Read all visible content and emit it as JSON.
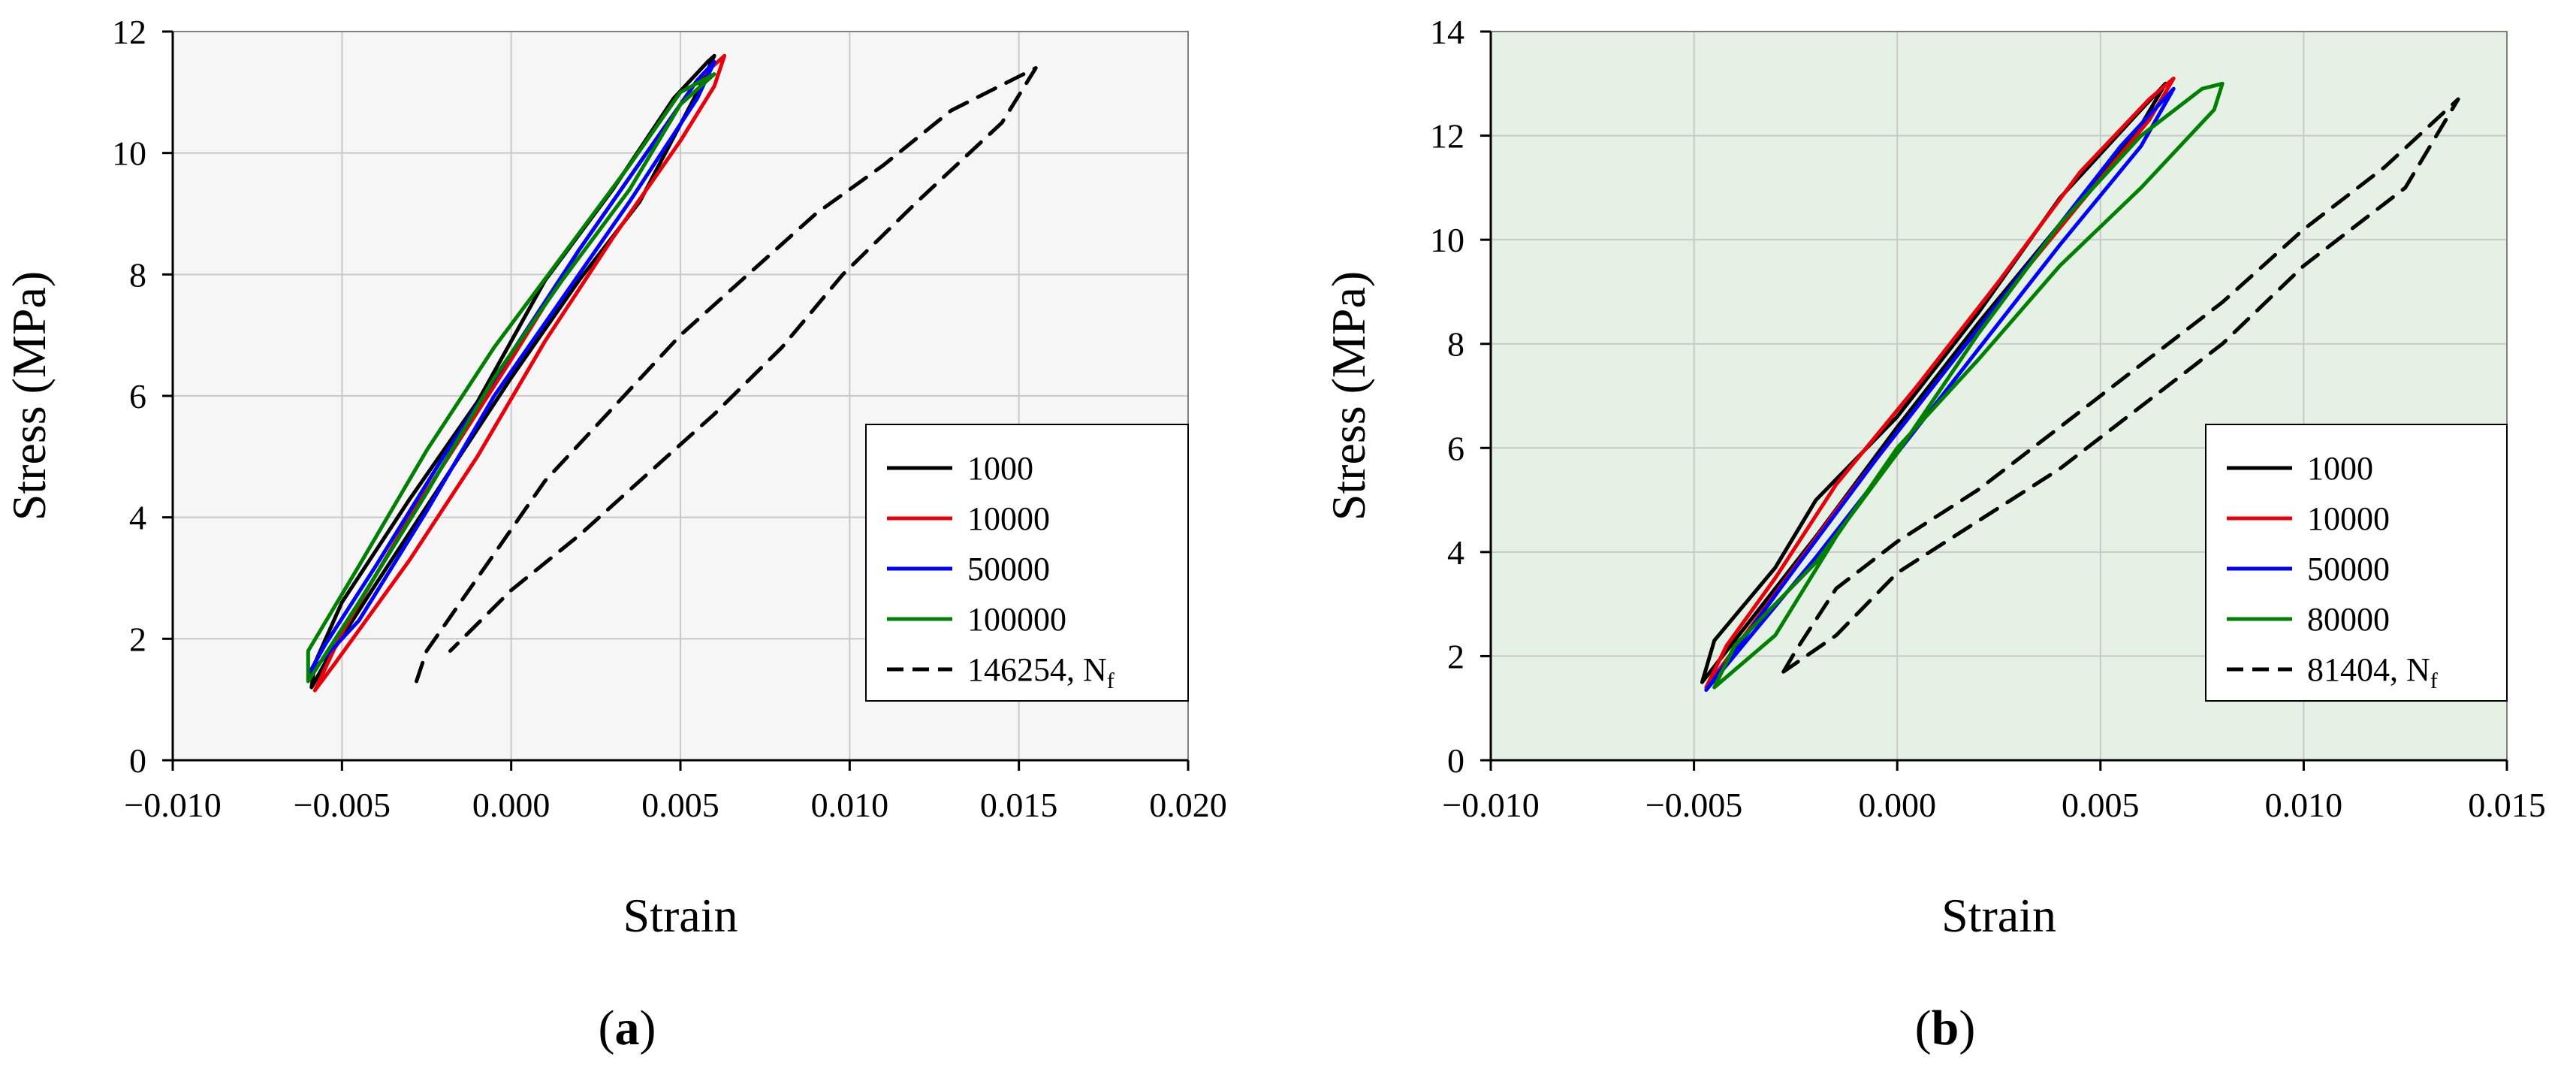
{
  "chart_data": [
    {
      "id": "a",
      "type": "line",
      "caption": {
        "open": "(",
        "letter": "a",
        "close": ")"
      },
      "background": "#f6f6f6",
      "xlabel": "Strain",
      "ylabel": "Stress (MPa)",
      "xlim": [
        -0.01,
        0.02
      ],
      "ylim": [
        0,
        12
      ],
      "xticks": [
        -0.01,
        -0.005,
        0.0,
        0.005,
        0.01,
        0.015,
        0.02
      ],
      "xtick_labels": [
        "−0.010",
        "−0.005",
        "0.000",
        "0.005",
        "0.010",
        "0.015",
        "0.020"
      ],
      "yticks": [
        0,
        2,
        4,
        6,
        8,
        10,
        12
      ],
      "ytick_labels": [
        "0",
        "2",
        "4",
        "6",
        "8",
        "10",
        "12"
      ],
      "grid": true,
      "legend_position": "right-middle",
      "series": [
        {
          "name": "1000",
          "color": "#000000",
          "dashed": false,
          "up": [
            [
              -0.0059,
              1.2
            ],
            [
              -0.0058,
              1.6
            ],
            [
              -0.005,
              2.6
            ],
            [
              -0.003,
              4.3
            ],
            [
              -0.001,
              5.9
            ],
            [
              0.001,
              7.9
            ],
            [
              0.003,
              9.4
            ],
            [
              0.0048,
              10.9
            ],
            [
              0.0058,
              11.5
            ],
            [
              0.006,
              11.6
            ]
          ],
          "down": [
            [
              0.006,
              11.6
            ],
            [
              0.0055,
              11.0
            ],
            [
              0.0038,
              9.2
            ],
            [
              0.002,
              7.9
            ],
            [
              0.0,
              6.3
            ],
            [
              -0.002,
              4.6
            ],
            [
              -0.004,
              2.9
            ],
            [
              -0.0055,
              1.6
            ],
            [
              -0.0059,
              1.2
            ]
          ]
        },
        {
          "name": "10000",
          "color": "#e8000b",
          "dashed": false,
          "up": [
            [
              -0.0058,
              1.15
            ],
            [
              -0.005,
              2.1
            ],
            [
              -0.003,
              4.0
            ],
            [
              -0.0015,
              5.3
            ],
            [
              0.0,
              6.6
            ],
            [
              0.002,
              8.4
            ],
            [
              0.004,
              10.0
            ],
            [
              0.0055,
              11.2
            ],
            [
              0.0063,
              11.6
            ]
          ],
          "down": [
            [
              0.0063,
              11.6
            ],
            [
              0.006,
              11.1
            ],
            [
              0.005,
              10.2
            ],
            [
              0.003,
              8.6
            ],
            [
              0.001,
              6.9
            ],
            [
              -0.001,
              5.0
            ],
            [
              -0.003,
              3.3
            ],
            [
              -0.0052,
              1.6
            ],
            [
              -0.0058,
              1.15
            ]
          ]
        },
        {
          "name": "50000",
          "color": "#0000ff",
          "dashed": false,
          "up": [
            [
              -0.006,
              1.4
            ],
            [
              -0.0055,
              1.9
            ],
            [
              -0.004,
              3.2
            ],
            [
              -0.002,
              5.0
            ],
            [
              0.0,
              6.7
            ],
            [
              0.002,
              8.4
            ],
            [
              0.004,
              10.0
            ],
            [
              0.0055,
              11.2
            ],
            [
              0.006,
              11.5
            ]
          ],
          "down": [
            [
              0.006,
              11.5
            ],
            [
              0.0055,
              10.9
            ],
            [
              0.0035,
              9.2
            ],
            [
              0.0015,
              7.6
            ],
            [
              -0.0005,
              6.0
            ],
            [
              -0.0025,
              4.1
            ],
            [
              -0.0045,
              2.3
            ],
            [
              -0.006,
              1.4
            ]
          ]
        },
        {
          "name": "100000",
          "color": "#008000",
          "dashed": false,
          "up": [
            [
              -0.006,
              1.3
            ],
            [
              -0.006,
              1.8
            ],
            [
              -0.0045,
              3.2
            ],
            [
              -0.0025,
              5.1
            ],
            [
              -0.0005,
              6.8
            ],
            [
              0.0015,
              8.3
            ],
            [
              0.0035,
              9.8
            ],
            [
              0.005,
              11.0
            ],
            [
              0.006,
              11.3
            ]
          ],
          "down": [
            [
              0.006,
              11.3
            ],
            [
              0.005,
              10.8
            ],
            [
              0.0035,
              9.4
            ],
            [
              0.0015,
              7.9
            ],
            [
              -0.0005,
              6.3
            ],
            [
              -0.0025,
              4.4
            ],
            [
              -0.0045,
              2.6
            ],
            [
              -0.006,
              1.3
            ]
          ]
        },
        {
          "name": "146254, Nf",
          "label_main": "146254, N",
          "label_sub": "f",
          "color": "#000000",
          "dashed": true,
          "up": [
            [
              -0.0028,
              1.3
            ],
            [
              -0.0025,
              1.8
            ],
            [
              -0.001,
              3.0
            ],
            [
              0.001,
              4.6
            ],
            [
              0.003,
              5.8
            ],
            [
              0.005,
              7.0
            ],
            [
              0.007,
              8.0
            ],
            [
              0.009,
              9.0
            ],
            [
              0.011,
              9.8
            ],
            [
              0.013,
              10.7
            ],
            [
              0.0155,
              11.4
            ]
          ],
          "down": [
            [
              0.0157,
              11.3
            ],
            [
              0.0145,
              10.5
            ],
            [
              0.012,
              9.2
            ],
            [
              0.0098,
              8.0
            ],
            [
              0.008,
              6.8
            ],
            [
              0.006,
              5.7
            ],
            [
              0.004,
              4.7
            ],
            [
              0.002,
              3.7
            ],
            [
              0.0,
              2.8
            ],
            [
              -0.0018,
              1.8
            ]
          ]
        }
      ]
    },
    {
      "id": "b",
      "type": "line",
      "caption": {
        "open": "(",
        "letter": "b",
        "close": ")"
      },
      "background": "#e6f1e6",
      "xlabel": "Strain",
      "ylabel": "Stress (MPa)",
      "xlim": [
        -0.01,
        0.015
      ],
      "ylim": [
        0,
        14
      ],
      "xticks": [
        -0.01,
        -0.005,
        0.0,
        0.005,
        0.01,
        0.015
      ],
      "xtick_labels": [
        "−0.010",
        "−0.005",
        "0.000",
        "0.005",
        "0.010",
        "0.015"
      ],
      "yticks": [
        0,
        2,
        4,
        6,
        8,
        10,
        12,
        14
      ],
      "ytick_labels": [
        "0",
        "2",
        "4",
        "6",
        "8",
        "10",
        "12",
        "14"
      ],
      "grid": true,
      "legend_position": "right-middle",
      "series": [
        {
          "name": "1000",
          "color": "#000000",
          "dashed": false,
          "up": [
            [
              -0.0048,
              1.5
            ],
            [
              -0.0045,
              2.3
            ],
            [
              -0.003,
              3.7
            ],
            [
              -0.002,
              5.0
            ],
            [
              0.0,
              6.6
            ],
            [
              0.002,
              8.6
            ],
            [
              0.004,
              10.8
            ],
            [
              0.006,
              12.5
            ],
            [
              0.0066,
              13.0
            ]
          ],
          "down": [
            [
              0.0066,
              13.0
            ],
            [
              0.006,
              12.2
            ],
            [
              0.004,
              10.3
            ],
            [
              0.002,
              8.4
            ],
            [
              0.0,
              6.4
            ],
            [
              -0.002,
              4.3
            ],
            [
              -0.0035,
              2.8
            ],
            [
              -0.0048,
              1.5
            ]
          ]
        },
        {
          "name": "10000",
          "color": "#e8000b",
          "dashed": false,
          "up": [
            [
              -0.0047,
              1.4
            ],
            [
              -0.0042,
              2.2
            ],
            [
              -0.003,
              3.5
            ],
            [
              -0.0015,
              5.3
            ],
            [
              0.0005,
              7.2
            ],
            [
              0.0025,
              9.2
            ],
            [
              0.0045,
              11.3
            ],
            [
              0.0062,
              12.7
            ],
            [
              0.0068,
              13.1
            ]
          ],
          "down": [
            [
              0.0068,
              13.1
            ],
            [
              0.0062,
              12.3
            ],
            [
              0.0045,
              10.7
            ],
            [
              0.0025,
              8.8
            ],
            [
              0.0005,
              6.8
            ],
            [
              -0.0015,
              4.8
            ],
            [
              -0.003,
              3.2
            ],
            [
              -0.0047,
              1.4
            ]
          ]
        },
        {
          "name": "50000",
          "color": "#0000ff",
          "dashed": false,
          "up": [
            [
              -0.0047,
              1.35
            ],
            [
              -0.004,
              2.1
            ],
            [
              -0.0025,
              3.7
            ],
            [
              -0.0005,
              5.8
            ],
            [
              0.0015,
              7.8
            ],
            [
              0.0035,
              9.8
            ],
            [
              0.0055,
              11.8
            ],
            [
              0.0068,
              12.9
            ]
          ],
          "down": [
            [
              0.0068,
              12.9
            ],
            [
              0.006,
              11.8
            ],
            [
              0.004,
              9.9
            ],
            [
              0.002,
              7.9
            ],
            [
              0.0,
              5.9
            ],
            [
              -0.002,
              3.9
            ],
            [
              -0.0037,
              2.3
            ],
            [
              -0.0047,
              1.35
            ]
          ]
        },
        {
          "name": "80000",
          "color": "#008000",
          "dashed": false,
          "up": [
            [
              -0.0045,
              1.4
            ],
            [
              -0.004,
              2.2
            ],
            [
              -0.002,
              3.8
            ],
            [
              0.0,
              5.9
            ],
            [
              0.002,
              8.2
            ],
            [
              0.004,
              10.3
            ],
            [
              0.006,
              12.0
            ],
            [
              0.0075,
              12.9
            ],
            [
              0.008,
              13.0
            ]
          ],
          "down": [
            [
              0.008,
              13.0
            ],
            [
              0.0078,
              12.5
            ],
            [
              0.006,
              11.0
            ],
            [
              0.004,
              9.5
            ],
            [
              0.002,
              7.7
            ],
            [
              0.0,
              6.0
            ],
            [
              -0.0015,
              4.3
            ],
            [
              -0.003,
              2.4
            ],
            [
              -0.0045,
              1.4
            ]
          ]
        },
        {
          "name": "81404, Nf",
          "label_main": "81404, N",
          "label_sub": "f",
          "color": "#000000",
          "dashed": true,
          "up": [
            [
              -0.0028,
              1.7
            ],
            [
              -0.0025,
              2.1
            ],
            [
              -0.0015,
              3.3
            ],
            [
              0.0,
              4.2
            ],
            [
              0.002,
              5.2
            ],
            [
              0.004,
              6.4
            ],
            [
              0.006,
              7.6
            ],
            [
              0.008,
              8.8
            ],
            [
              0.01,
              10.2
            ],
            [
              0.012,
              11.4
            ],
            [
              0.0138,
              12.7
            ]
          ],
          "down": [
            [
              0.014,
              12.4
            ],
            [
              0.0125,
              11.0
            ],
            [
              0.01,
              9.5
            ],
            [
              0.008,
              8.0
            ],
            [
              0.006,
              6.8
            ],
            [
              0.004,
              5.6
            ],
            [
              0.002,
              4.6
            ],
            [
              0.0,
              3.6
            ],
            [
              -0.0015,
              2.4
            ],
            [
              -0.0028,
              1.7
            ]
          ]
        }
      ]
    }
  ]
}
